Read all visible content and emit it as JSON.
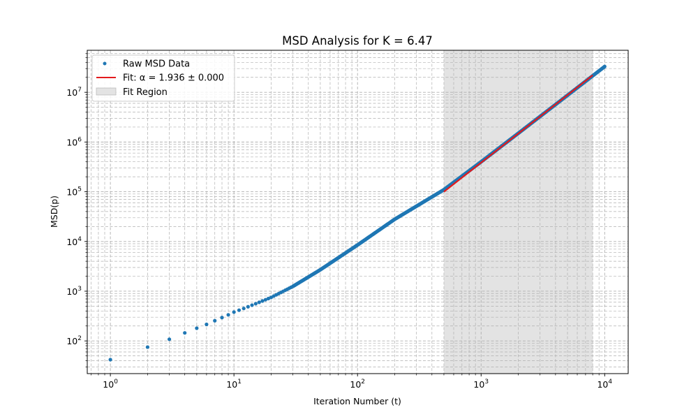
{
  "chart_data": {
    "type": "scatter",
    "title": "MSD Analysis for K = 6.47",
    "xlabel": "Iteration Number (t)",
    "ylabel": "MSD(p)",
    "xscale": "log",
    "yscale": "log",
    "xlim": [
      0.65,
      15500
    ],
    "ylim": [
      22,
      70000000
    ],
    "grid": "both (major and minor, dashed)",
    "legend_position": "top-left",
    "x_ticks": [
      {
        "base": "10",
        "exp": "0",
        "value": 1
      },
      {
        "base": "10",
        "exp": "1",
        "value": 10
      },
      {
        "base": "10",
        "exp": "2",
        "value": 100
      },
      {
        "base": "10",
        "exp": "3",
        "value": 1000
      },
      {
        "base": "10",
        "exp": "4",
        "value": 10000
      }
    ],
    "y_ticks": [
      {
        "base": "10",
        "exp": "2",
        "value": 100
      },
      {
        "base": "10",
        "exp": "3",
        "value": 1000
      },
      {
        "base": "10",
        "exp": "4",
        "value": 10000
      },
      {
        "base": "10",
        "exp": "5",
        "value": 100000
      },
      {
        "base": "10",
        "exp": "6",
        "value": 1000000
      },
      {
        "base": "10",
        "exp": "7",
        "value": 10000000
      }
    ],
    "fit_region": {
      "x_start": 500,
      "x_end": 8000,
      "color": "#e3e3e3"
    },
    "series": [
      {
        "name": "Raw MSD Data",
        "kind": "points",
        "color": "#1f77b4",
        "x": [
          1,
          2,
          3,
          4,
          5,
          6,
          7,
          8,
          9,
          10,
          12,
          15,
          20,
          30,
          50,
          100,
          200,
          500,
          1000,
          2000,
          5000,
          10000
        ],
        "y": [
          42,
          75,
          108,
          145,
          180,
          215,
          255,
          295,
          335,
          380,
          450,
          560,
          750,
          1250,
          2700,
          8500,
          28000,
          110000,
          400000,
          1500000,
          8700000,
          33000000
        ]
      },
      {
        "name": "Fit: α = 1.936 ± 0.000",
        "kind": "line",
        "color": "#e31a1c",
        "x": [
          500,
          8000
        ],
        "y": [
          100000,
          22000000
        ]
      },
      {
        "name": "Fit Region",
        "kind": "band",
        "color": "#e3e3e3"
      }
    ]
  }
}
